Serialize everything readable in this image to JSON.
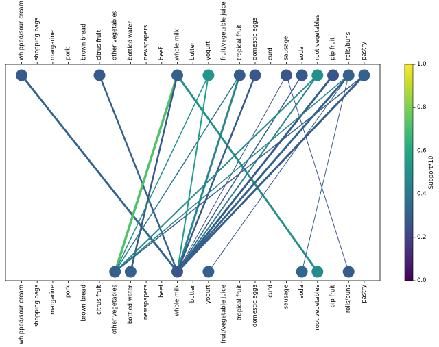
{
  "chart_data": {
    "type": "association-rules-bipartite",
    "items": [
      "whipped/sour cream",
      "shopping bags",
      "margarine",
      "pork",
      "brown bread",
      "citrus fruit",
      "other vegetables",
      "bottled water",
      "newspapers",
      "beef",
      "whole milk",
      "butter",
      "yogurt",
      "fruit/vegetable juice",
      "tropical fruit",
      "domestic eggs",
      "curd",
      "sausage",
      "soda",
      "root vegetables",
      "pip fruit",
      "rolls/buns",
      "pastry"
    ],
    "top_nodes": [
      {
        "item": "whipped/sour cream",
        "support": 0.28
      },
      {
        "item": "citrus fruit",
        "support": 0.28
      },
      {
        "item": "whole milk",
        "support": 0.3
      },
      {
        "item": "yogurt",
        "support": 0.52
      },
      {
        "item": "tropical fruit",
        "support": 0.29
      },
      {
        "item": "domestic eggs",
        "support": 0.27
      },
      {
        "item": "sausage",
        "support": 0.27
      },
      {
        "item": "soda",
        "support": 0.28
      },
      {
        "item": "root vegetables",
        "support": 0.5
      },
      {
        "item": "pip fruit",
        "support": 0.26
      },
      {
        "item": "rolls/buns",
        "support": 0.31
      },
      {
        "item": "pastry",
        "support": 0.31
      }
    ],
    "bottom_nodes": [
      {
        "item": "other vegetables",
        "support": 0.3
      },
      {
        "item": "bottled water",
        "support": 0.3
      },
      {
        "item": "whole milk",
        "support": 0.27
      },
      {
        "item": "yogurt",
        "support": 0.3
      },
      {
        "item": "soda",
        "support": 0.33
      },
      {
        "item": "root vegetables",
        "support": 0.48
      },
      {
        "item": "rolls/buns",
        "support": 0.29
      }
    ],
    "rules": [
      {
        "from": "whipped/sour cream",
        "to": "whole milk",
        "support": 0.32,
        "width": 3
      },
      {
        "from": "citrus fruit",
        "to": "whole milk",
        "support": 0.3,
        "width": 2.5
      },
      {
        "from": "whole milk",
        "to": "other vegetables",
        "support": 0.72,
        "width": 3.5
      },
      {
        "from": "whole milk",
        "to": "bottled water",
        "support": 0.27,
        "width": 2.5
      },
      {
        "from": "whole milk",
        "to": "root vegetables",
        "support": 0.5,
        "width": 3
      },
      {
        "from": "yogurt",
        "to": "whole milk",
        "support": 0.55,
        "width": 2
      },
      {
        "from": "yogurt",
        "to": "other vegetables",
        "support": 0.5,
        "width": 1.5
      },
      {
        "from": "tropical fruit",
        "to": "whole milk",
        "support": 0.45,
        "width": 3
      },
      {
        "from": "tropical fruit",
        "to": "other vegetables",
        "support": 0.4,
        "width": 1.5
      },
      {
        "from": "domestic eggs",
        "to": "whole milk",
        "support": 0.28,
        "width": 2.5
      },
      {
        "from": "sausage",
        "to": "rolls/buns",
        "support": 0.25,
        "width": 1
      },
      {
        "from": "sausage",
        "to": "whole milk",
        "support": 0.24,
        "width": 1
      },
      {
        "from": "soda",
        "to": "whole milk",
        "support": 0.28,
        "width": 1.5
      },
      {
        "from": "root vegetables",
        "to": "other vegetables",
        "support": 0.48,
        "width": 2
      },
      {
        "from": "root vegetables",
        "to": "whole milk",
        "support": 0.44,
        "width": 2
      },
      {
        "from": "pip fruit",
        "to": "whole milk",
        "support": 0.28,
        "width": 3
      },
      {
        "from": "rolls/buns",
        "to": "whole milk",
        "support": 0.32,
        "width": 3
      },
      {
        "from": "rolls/buns",
        "to": "soda",
        "support": 0.3,
        "width": 1
      },
      {
        "from": "rolls/buns",
        "to": "yogurt",
        "support": 0.27,
        "width": 1
      },
      {
        "from": "rolls/buns",
        "to": "other vegetables",
        "support": 0.45,
        "width": 1.5
      },
      {
        "from": "pastry",
        "to": "whole milk",
        "support": 0.29,
        "width": 3
      },
      {
        "from": "pastry",
        "to": "other vegetables",
        "support": 0.3,
        "width": 1.5
      }
    ],
    "colorbar": {
      "label": "Support*10",
      "min": 0.0,
      "max": 1.0,
      "ticks": [
        "0.0",
        "0.2",
        "0.4",
        "0.6",
        "0.8",
        "1.0"
      ],
      "colormap": "viridis"
    }
  }
}
